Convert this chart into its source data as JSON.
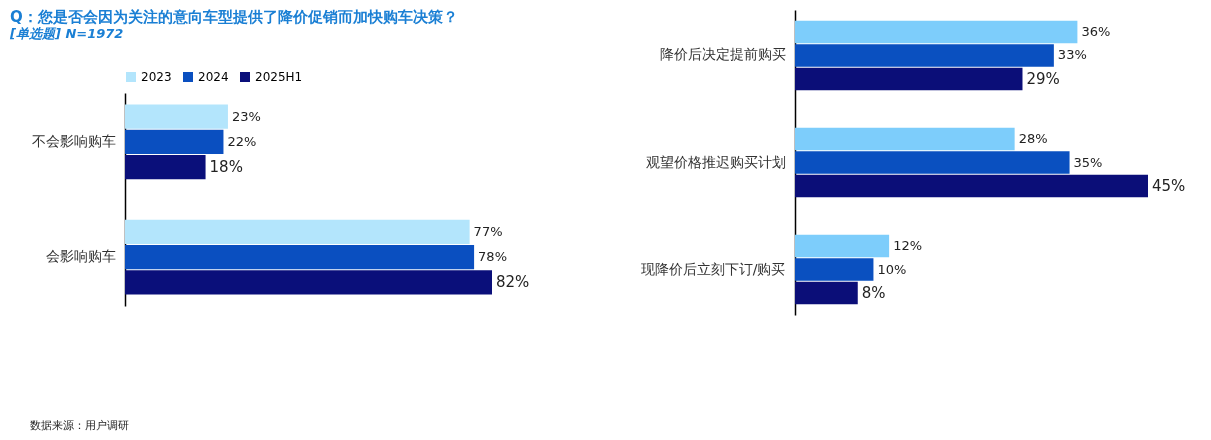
{
  "chart_data": [
    {
      "type": "bar",
      "orientation": "horizontal",
      "title": "Q：您是否会因为关注的意向车型提供了降价促销而加快购车决策？",
      "subtitle": "[单选题] N=1972",
      "annotations": [
        "数据来源：用户调研"
      ],
      "legend": "top",
      "categories": [
        "不会影响购车",
        "会影响购车"
      ],
      "series": [
        {
          "name": "2023",
          "color": "#b3e5fc",
          "values": [
            23,
            77
          ],
          "value_labels": [
            "23%",
            "77%"
          ]
        },
        {
          "name": "2024",
          "color": "#0a4fc0",
          "values": [
            22,
            78
          ],
          "value_labels": [
            "22%",
            "78%"
          ]
        },
        {
          "name": "2025H1",
          "color": "#0a0f7a",
          "values": [
            18,
            82
          ],
          "value_labels": [
            "18%",
            "82%"
          ]
        }
      ]
    },
    {
      "type": "bar",
      "orientation": "horizontal",
      "categories": [
        "降价后决定提前购买",
        "观望价格推迟购买计划",
        "现降价后立刻下订/购买"
      ],
      "series": [
        {
          "color": "#7dcdfb",
          "values": [
            36,
            28,
            12
          ],
          "value_labels": [
            "36%",
            "28%",
            "12%"
          ]
        },
        {
          "color": "#0a50c0",
          "values": [
            33,
            35,
            10
          ],
          "value_labels": [
            "33%",
            "35%",
            "10%"
          ]
        },
        {
          "color": "#0b0e78",
          "values": [
            29,
            45,
            8
          ],
          "value_labels": [
            "29%",
            "45%",
            "8%"
          ]
        }
      ]
    }
  ]
}
